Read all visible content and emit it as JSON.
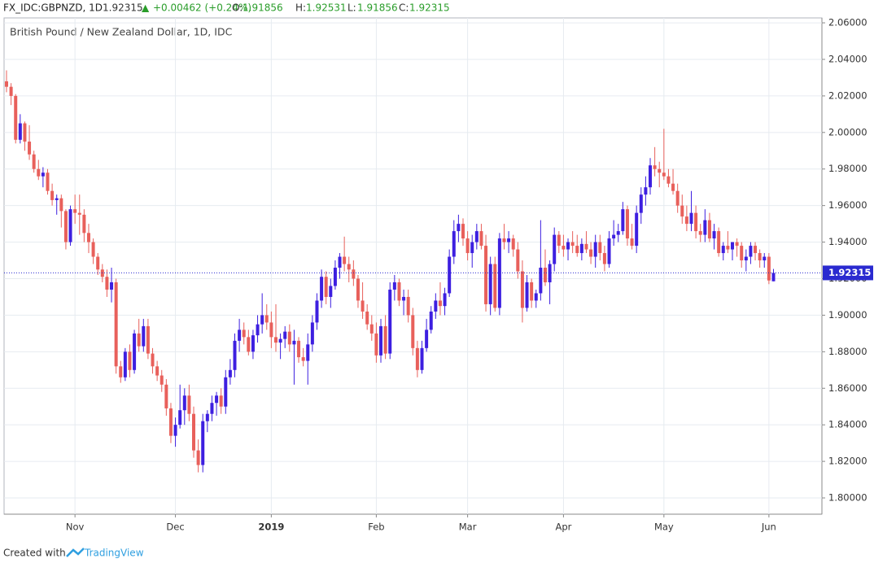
{
  "header": {
    "symbol": "FX_IDC:GBPNZD, 1D",
    "last": "1.92315",
    "arrow": "▲",
    "change": "+0.00462 (+0.24%)",
    "ohlc": [
      {
        "label": "O:",
        "value": "1.91856"
      },
      {
        "label": "H:",
        "value": "1.92531"
      },
      {
        "label": "L:",
        "value": "1.91856"
      },
      {
        "label": "C:",
        "value": "1.92315"
      }
    ]
  },
  "footer": {
    "created": "Created with",
    "brand": "TradingView"
  },
  "chart_data": {
    "type": "candlestick",
    "title": "British Pound / New Zealand Dollar, 1D, IDC",
    "up_color": "#3d1fe0",
    "down_color": "#e8605b",
    "grid": true,
    "ylim": [
      1.7911,
      2.0627
    ],
    "yticks": [
      {
        "value": 1.8,
        "label": "1.80000"
      },
      {
        "value": 1.82,
        "label": "1.82000"
      },
      {
        "value": 1.84,
        "label": "1.84000"
      },
      {
        "value": 1.86,
        "label": "1.86000"
      },
      {
        "value": 1.88,
        "label": "1.88000"
      },
      {
        "value": 1.9,
        "label": "1.90000"
      },
      {
        "value": 1.92,
        "label": "1.92000"
      },
      {
        "value": 1.94,
        "label": "1.94000"
      },
      {
        "value": 1.96,
        "label": "1.96000"
      },
      {
        "value": 1.98,
        "label": "1.98000"
      },
      {
        "value": 2.0,
        "label": "2.00000"
      },
      {
        "value": 2.02,
        "label": "2.02000"
      },
      {
        "value": 2.04,
        "label": "2.04000"
      },
      {
        "value": 2.06,
        "label": "2.06000"
      }
    ],
    "last_price": {
      "value": 1.92315,
      "label": "1.92315",
      "color": "#2a2ad0"
    },
    "categories": [
      null,
      null,
      null,
      null,
      null,
      null,
      null,
      null,
      null,
      null,
      null,
      null,
      null,
      null,
      null,
      "Nov",
      null,
      null,
      null,
      null,
      null,
      null,
      null,
      null,
      null,
      null,
      null,
      null,
      null,
      null,
      null,
      null,
      null,
      null,
      null,
      null,
      null,
      "Dec",
      null,
      null,
      null,
      null,
      null,
      null,
      null,
      null,
      null,
      null,
      null,
      null,
      null,
      null,
      null,
      null,
      null,
      null,
      null,
      null,
      "2019",
      null,
      null,
      null,
      null,
      null,
      null,
      null,
      null,
      null,
      null,
      null,
      null,
      null,
      null,
      null,
      null,
      null,
      null,
      null,
      null,
      null,
      null,
      "Feb",
      null,
      null,
      null,
      null,
      null,
      null,
      null,
      null,
      null,
      null,
      null,
      null,
      null,
      null,
      null,
      null,
      null,
      null,
      null,
      "Mar",
      null,
      null,
      null,
      null,
      null,
      null,
      null,
      null,
      null,
      null,
      null,
      null,
      null,
      null,
      null,
      null,
      null,
      null,
      null,
      null,
      "Apr",
      null,
      null,
      null,
      null,
      null,
      null,
      null,
      null,
      null,
      null,
      null,
      null,
      null,
      null,
      null,
      null,
      null,
      null,
      null,
      null,
      null,
      "May",
      null,
      null,
      null,
      null,
      null,
      null,
      null,
      null,
      null,
      null,
      null,
      null,
      null,
      null,
      null,
      null,
      null,
      null,
      null,
      null,
      null,
      null,
      "Jun",
      null
    ],
    "candles": [
      [
        2.028,
        2.034,
        2.022,
        2.025
      ],
      [
        2.025,
        2.027,
        2.015,
        2.02
      ],
      [
        2.02,
        2.021,
        1.994,
        1.996
      ],
      [
        1.996,
        2.01,
        1.994,
        2.005
      ],
      [
        2.005,
        2.006,
        1.99,
        1.995
      ],
      [
        1.995,
        2.004,
        1.985,
        1.988
      ],
      [
        1.988,
        1.99,
        1.978,
        1.98
      ],
      [
        1.98,
        1.985,
        1.974,
        1.976
      ],
      [
        1.976,
        1.981,
        1.97,
        1.978
      ],
      [
        1.978,
        1.98,
        1.966,
        1.968
      ],
      [
        1.968,
        1.972,
        1.96,
        1.963
      ],
      [
        1.963,
        1.966,
        1.955,
        1.964
      ],
      [
        1.964,
        1.966,
        1.948,
        1.957
      ],
      [
        1.957,
        1.958,
        1.936,
        1.94
      ],
      [
        1.94,
        1.96,
        1.938,
        1.958
      ],
      [
        1.958,
        1.966,
        1.95,
        1.956
      ],
      [
        1.956,
        1.966,
        1.944,
        1.955
      ],
      [
        1.955,
        1.958,
        1.94,
        1.945
      ],
      [
        1.945,
        1.95,
        1.934,
        1.94
      ],
      [
        1.94,
        1.942,
        1.928,
        1.932
      ],
      [
        1.932,
        1.934,
        1.922,
        1.925
      ],
      [
        1.925,
        1.928,
        1.918,
        1.921
      ],
      [
        1.921,
        1.925,
        1.91,
        1.914
      ],
      [
        1.914,
        1.926,
        1.907,
        1.918
      ],
      [
        1.918,
        1.92,
        1.868,
        1.872
      ],
      [
        1.872,
        1.875,
        1.863,
        1.866
      ],
      [
        1.866,
        1.882,
        1.864,
        1.88
      ],
      [
        1.88,
        1.884,
        1.866,
        1.87
      ],
      [
        1.87,
        1.892,
        1.868,
        1.89
      ],
      [
        1.89,
        1.898,
        1.88,
        1.883
      ],
      [
        1.883,
        1.898,
        1.88,
        1.894
      ],
      [
        1.894,
        1.898,
        1.876,
        1.879
      ],
      [
        1.879,
        1.882,
        1.868,
        1.872
      ],
      [
        1.872,
        1.875,
        1.864,
        1.867
      ],
      [
        1.867,
        1.87,
        1.858,
        1.862
      ],
      [
        1.862,
        1.865,
        1.845,
        1.849
      ],
      [
        1.849,
        1.852,
        1.83,
        1.834
      ],
      [
        1.834,
        1.844,
        1.828,
        1.84
      ],
      [
        1.84,
        1.862,
        1.838,
        1.848
      ],
      [
        1.848,
        1.86,
        1.84,
        1.856
      ],
      [
        1.856,
        1.862,
        1.842,
        1.846
      ],
      [
        1.846,
        1.85,
        1.822,
        1.826
      ],
      [
        1.826,
        1.832,
        1.814,
        1.818
      ],
      [
        1.818,
        1.846,
        1.814,
        1.842
      ],
      [
        1.842,
        1.848,
        1.836,
        1.846
      ],
      [
        1.846,
        1.856,
        1.842,
        1.852
      ],
      [
        1.852,
        1.858,
        1.845,
        1.856
      ],
      [
        1.856,
        1.86,
        1.846,
        1.85
      ],
      [
        1.85,
        1.87,
        1.846,
        1.866
      ],
      [
        1.866,
        1.876,
        1.862,
        1.87
      ],
      [
        1.87,
        1.89,
        1.866,
        1.886
      ],
      [
        1.886,
        1.898,
        1.88,
        1.892
      ],
      [
        1.892,
        1.896,
        1.884,
        1.888
      ],
      [
        1.888,
        1.892,
        1.878,
        1.88
      ],
      [
        1.88,
        1.892,
        1.876,
        1.889
      ],
      [
        1.889,
        1.9,
        1.885,
        1.895
      ],
      [
        1.895,
        1.912,
        1.89,
        1.9
      ],
      [
        1.9,
        1.906,
        1.892,
        1.896
      ],
      [
        1.896,
        1.902,
        1.882,
        1.888
      ],
      [
        1.888,
        1.906,
        1.88,
        1.885
      ],
      [
        1.885,
        1.89,
        1.876,
        1.887
      ],
      [
        1.887,
        1.894,
        1.882,
        1.891
      ],
      [
        1.891,
        1.895,
        1.88,
        1.884
      ],
      [
        1.884,
        1.892,
        1.862,
        1.886
      ],
      [
        1.886,
        1.888,
        1.874,
        1.877
      ],
      [
        1.877,
        1.882,
        1.872,
        1.875
      ],
      [
        1.875,
        1.89,
        1.862,
        1.884
      ],
      [
        1.884,
        1.9,
        1.88,
        1.896
      ],
      [
        1.896,
        1.912,
        1.892,
        1.908
      ],
      [
        1.908,
        1.925,
        1.904,
        1.921
      ],
      [
        1.921,
        1.924,
        1.906,
        1.91
      ],
      [
        1.91,
        1.92,
        1.904,
        1.916
      ],
      [
        1.916,
        1.93,
        1.914,
        1.926
      ],
      [
        1.926,
        1.934,
        1.92,
        1.932
      ],
      [
        1.932,
        1.943,
        1.924,
        1.928
      ],
      [
        1.928,
        1.932,
        1.918,
        1.925
      ],
      [
        1.925,
        1.93,
        1.916,
        1.92
      ],
      [
        1.92,
        1.922,
        1.904,
        1.908
      ],
      [
        1.908,
        1.918,
        1.898,
        1.902
      ],
      [
        1.902,
        1.906,
        1.892,
        1.895
      ],
      [
        1.895,
        1.9,
        1.886,
        1.89
      ],
      [
        1.89,
        1.896,
        1.874,
        1.878
      ],
      [
        1.878,
        1.898,
        1.874,
        1.894
      ],
      [
        1.894,
        1.9,
        1.876,
        1.879
      ],
      [
        1.879,
        1.918,
        1.876,
        1.914
      ],
      [
        1.914,
        1.922,
        1.908,
        1.918
      ],
      [
        1.918,
        1.92,
        1.905,
        1.908
      ],
      [
        1.908,
        1.914,
        1.9,
        1.91
      ],
      [
        1.91,
        1.914,
        1.896,
        1.9
      ],
      [
        1.9,
        1.904,
        1.878,
        1.882
      ],
      [
        1.882,
        1.886,
        1.866,
        1.87
      ],
      [
        1.87,
        1.886,
        1.868,
        1.882
      ],
      [
        1.882,
        1.898,
        1.88,
        1.892
      ],
      [
        1.892,
        1.905,
        1.89,
        1.902
      ],
      [
        1.902,
        1.912,
        1.898,
        1.908
      ],
      [
        1.908,
        1.918,
        1.9,
        1.905
      ],
      [
        1.905,
        1.915,
        1.9,
        1.912
      ],
      [
        1.912,
        1.936,
        1.91,
        1.932
      ],
      [
        1.932,
        1.952,
        1.928,
        1.946
      ],
      [
        1.946,
        1.955,
        1.94,
        1.95
      ],
      [
        1.95,
        1.953,
        1.938,
        1.942
      ],
      [
        1.942,
        1.946,
        1.93,
        1.934
      ],
      [
        1.934,
        1.944,
        1.926,
        1.94
      ],
      [
        1.94,
        1.95,
        1.936,
        1.946
      ],
      [
        1.946,
        1.95,
        1.936,
        1.938
      ],
      [
        1.938,
        1.944,
        1.902,
        1.906
      ],
      [
        1.906,
        1.932,
        1.9,
        1.928
      ],
      [
        1.928,
        1.932,
        1.902,
        1.904
      ],
      [
        1.904,
        1.945,
        1.9,
        1.942
      ],
      [
        1.942,
        1.95,
        1.936,
        1.94
      ],
      [
        1.94,
        1.946,
        1.934,
        1.942
      ],
      [
        1.942,
        1.944,
        1.932,
        1.936
      ],
      [
        1.936,
        1.94,
        1.92,
        1.924
      ],
      [
        1.924,
        1.93,
        1.896,
        1.904
      ],
      [
        1.904,
        1.922,
        1.902,
        1.918
      ],
      [
        1.918,
        1.92,
        1.904,
        1.908
      ],
      [
        1.908,
        1.914,
        1.904,
        1.912
      ],
      [
        1.912,
        1.952,
        1.908,
        1.926
      ],
      [
        1.926,
        1.936,
        1.916,
        1.918
      ],
      [
        1.918,
        1.93,
        1.906,
        1.928
      ],
      [
        1.928,
        1.948,
        1.924,
        1.944
      ],
      [
        1.944,
        1.946,
        1.934,
        1.938
      ],
      [
        1.938,
        1.944,
        1.932,
        1.936
      ],
      [
        1.936,
        1.942,
        1.93,
        1.94
      ],
      [
        1.94,
        1.946,
        1.934,
        1.938
      ],
      [
        1.938,
        1.944,
        1.932,
        1.934
      ],
      [
        1.934,
        1.942,
        1.93,
        1.939
      ],
      [
        1.939,
        1.946,
        1.934,
        1.936
      ],
      [
        1.936,
        1.94,
        1.928,
        1.932
      ],
      [
        1.932,
        1.944,
        1.926,
        1.94
      ],
      [
        1.94,
        1.944,
        1.93,
        1.934
      ],
      [
        1.934,
        1.938,
        1.924,
        1.928
      ],
      [
        1.928,
        1.946,
        1.926,
        1.942
      ],
      [
        1.942,
        1.952,
        1.938,
        1.944
      ],
      [
        1.944,
        1.95,
        1.94,
        1.946
      ],
      [
        1.946,
        1.962,
        1.944,
        1.958
      ],
      [
        1.958,
        1.96,
        1.938,
        1.942
      ],
      [
        1.942,
        1.95,
        1.936,
        1.938
      ],
      [
        1.938,
        1.96,
        1.934,
        1.956
      ],
      [
        1.956,
        1.97,
        1.95,
        1.966
      ],
      [
        1.966,
        1.976,
        1.96,
        1.97
      ],
      [
        1.97,
        1.986,
        1.966,
        1.982
      ],
      [
        1.982,
        1.992,
        1.976,
        1.98
      ],
      [
        1.98,
        1.984,
        1.97,
        1.978
      ],
      [
        1.978,
        2.002,
        1.974,
        1.976
      ],
      [
        1.976,
        1.98,
        1.97,
        1.972
      ],
      [
        1.972,
        1.98,
        1.966,
        1.968
      ],
      [
        1.968,
        1.972,
        1.956,
        1.96
      ],
      [
        1.96,
        1.966,
        1.95,
        1.954
      ],
      [
        1.954,
        1.96,
        1.946,
        1.95
      ],
      [
        1.95,
        1.968,
        1.946,
        1.956
      ],
      [
        1.956,
        1.96,
        1.942,
        1.946
      ],
      [
        1.946,
        1.95,
        1.94,
        1.944
      ],
      [
        1.944,
        1.958,
        1.94,
        1.952
      ],
      [
        1.952,
        1.956,
        1.94,
        1.942
      ],
      [
        1.942,
        1.95,
        1.936,
        1.946
      ],
      [
        1.946,
        1.948,
        1.932,
        1.934
      ],
      [
        1.934,
        1.94,
        1.93,
        1.938
      ],
      [
        1.938,
        1.946,
        1.934,
        1.936
      ],
      [
        1.936,
        1.94,
        1.93,
        1.94
      ],
      [
        1.94,
        1.942,
        1.932,
        1.938
      ],
      [
        1.938,
        1.94,
        1.926,
        1.93
      ],
      [
        1.93,
        1.936,
        1.924,
        1.932
      ],
      [
        1.932,
        1.94,
        1.928,
        1.938
      ],
      [
        1.938,
        1.94,
        1.93,
        1.934
      ],
      [
        1.934,
        1.936,
        1.926,
        1.93
      ],
      [
        1.93,
        1.934,
        1.926,
        1.932
      ],
      [
        1.932,
        1.934,
        1.917,
        1.919
      ],
      [
        1.91856,
        1.92531,
        1.91856,
        1.92315
      ]
    ]
  }
}
